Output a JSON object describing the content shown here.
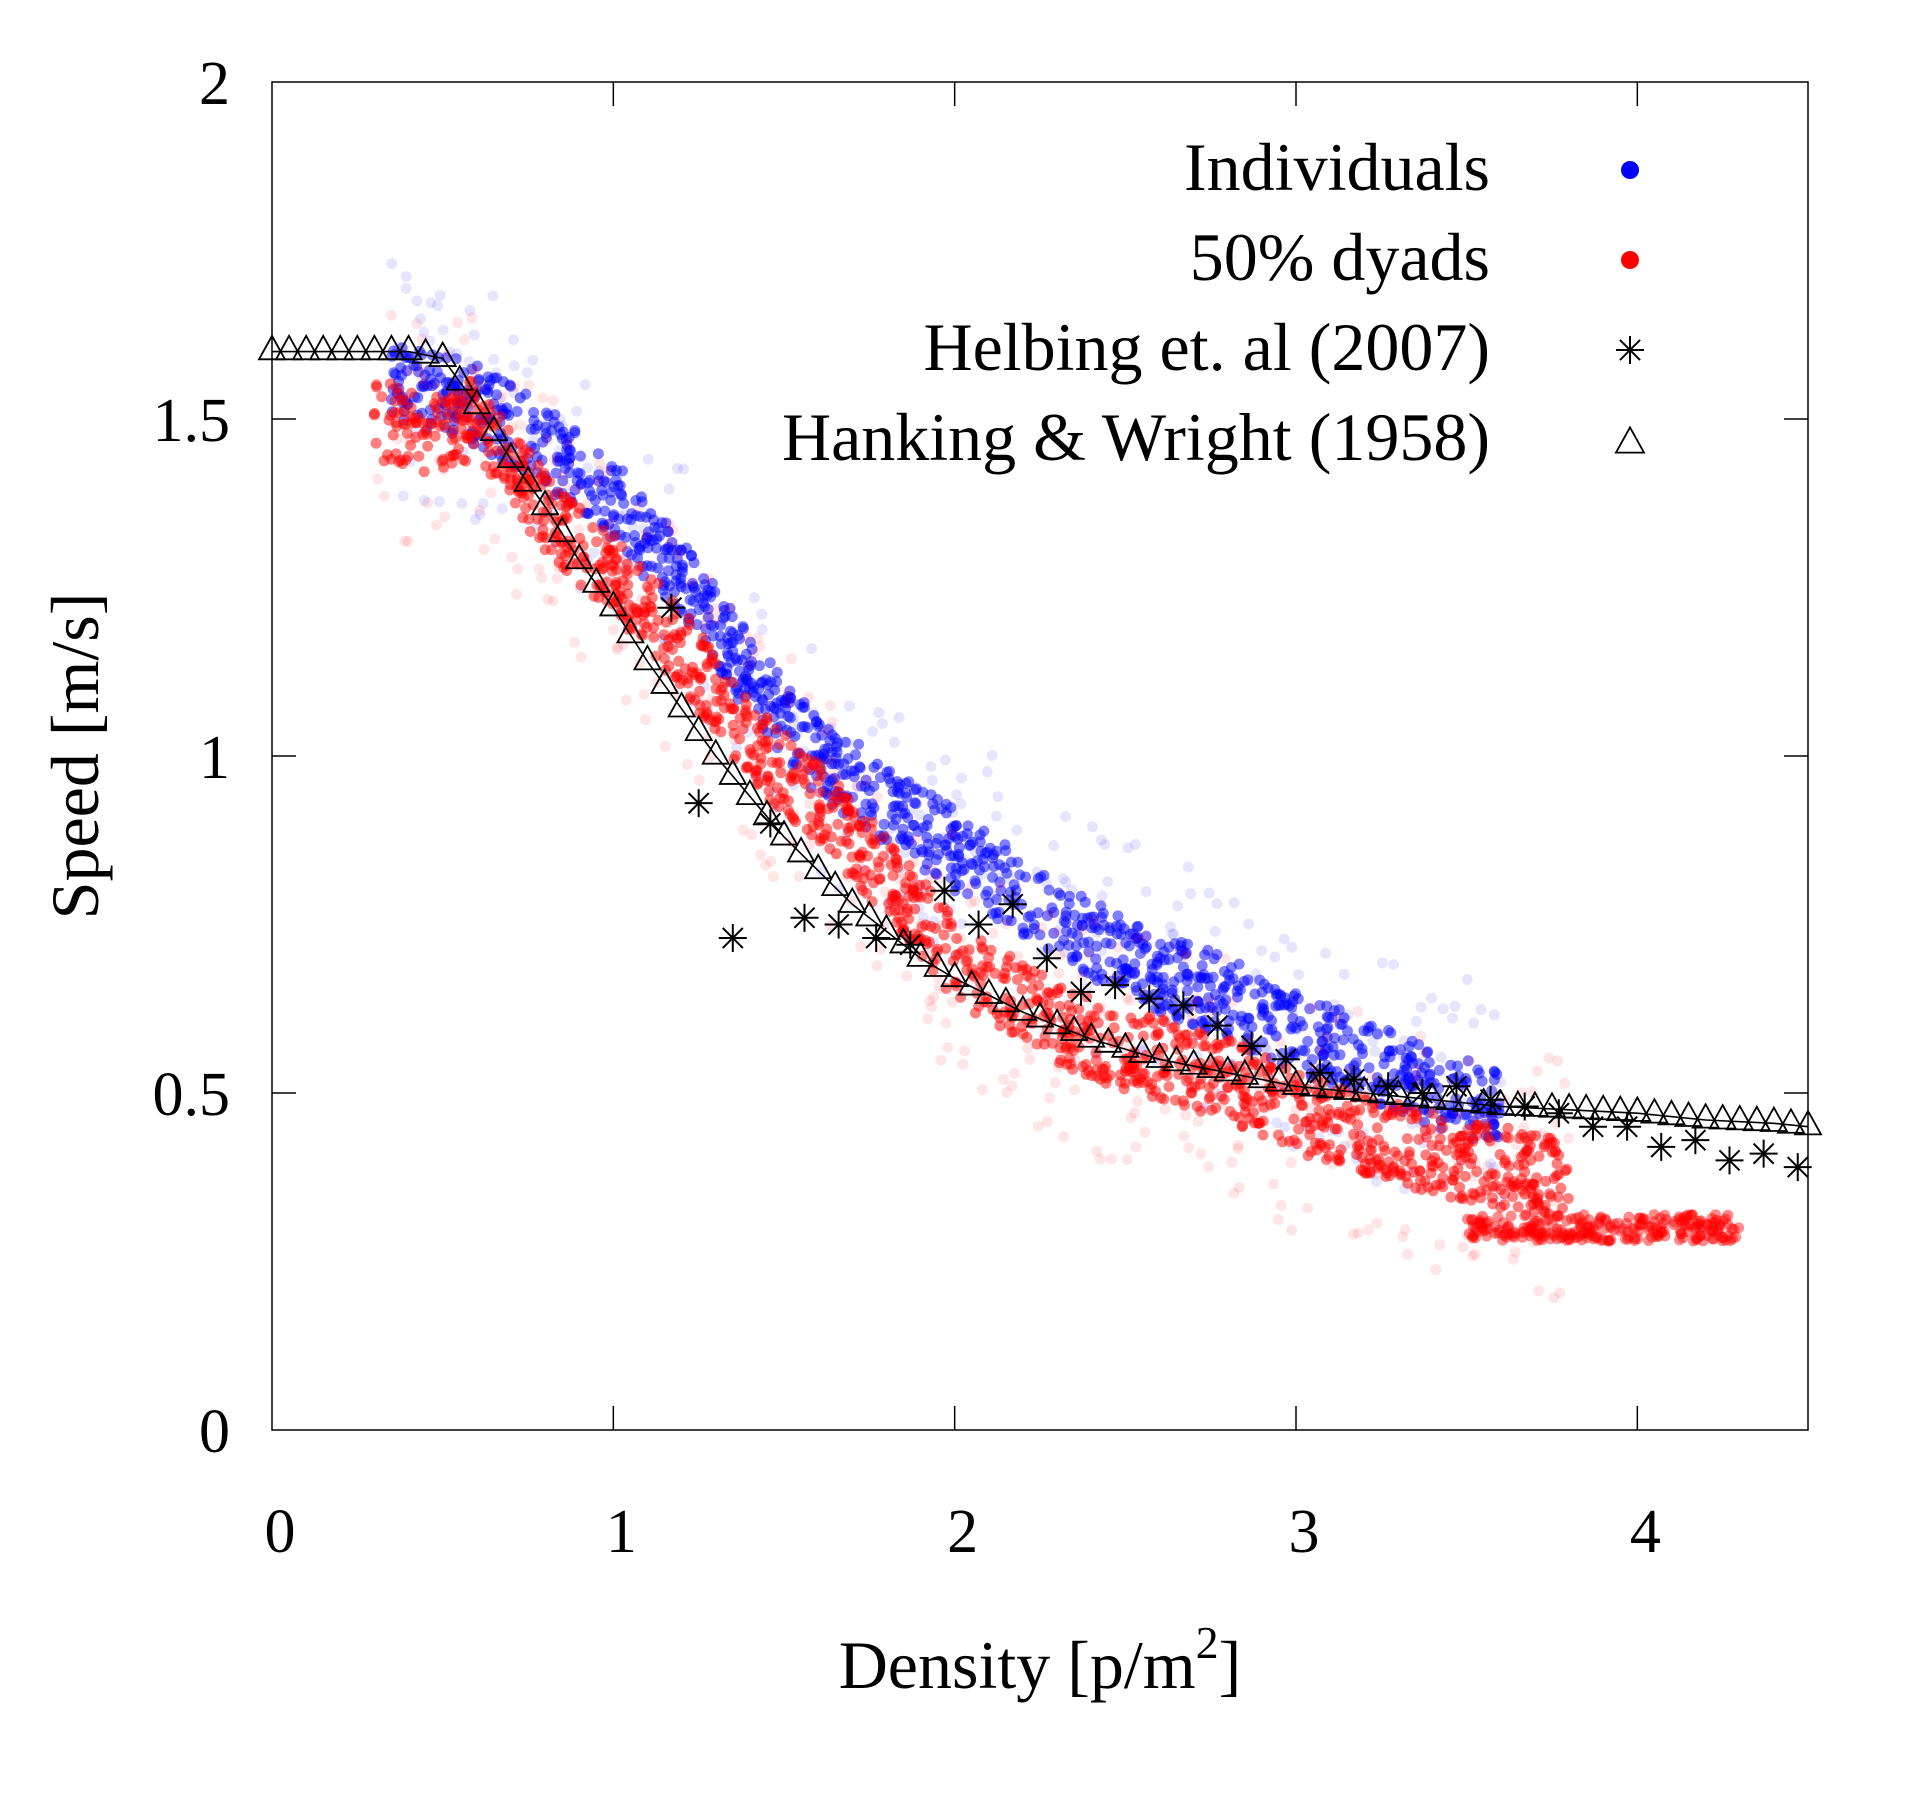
{
  "chart_data": {
    "type": "scatter",
    "xlabel": "Density [p/m",
    "xlabel_sup": "2",
    "xlabel_end": "]",
    "ylabel": "Speed [m/s]",
    "xlim": [
      0,
      4.5
    ],
    "ylim": [
      0,
      2
    ],
    "x_ticks": [
      0,
      1,
      2,
      3,
      4
    ],
    "y_ticks": [
      0,
      0.5,
      1,
      1.5,
      2
    ],
    "x_tick_labels": [
      "0",
      "1",
      "2",
      "3",
      "4"
    ],
    "y_tick_labels": [
      "0",
      "0.5",
      "1",
      "1.5",
      "2"
    ],
    "grid": false,
    "legend_position": "top-right",
    "colors": {
      "individuals": "#0000ff",
      "dyads": "#ff0000",
      "reference": "#000000"
    },
    "series": [
      {
        "name": "Individuals",
        "marker": "dot",
        "centerline": [
          [
            0.35,
            1.56
          ],
          [
            0.6,
            1.52
          ],
          [
            0.8,
            1.46
          ],
          [
            1.0,
            1.38
          ],
          [
            1.2,
            1.26
          ],
          [
            1.4,
            1.12
          ],
          [
            1.6,
            1.0
          ],
          [
            1.8,
            0.93
          ],
          [
            2.0,
            0.86
          ],
          [
            2.2,
            0.79
          ],
          [
            2.4,
            0.73
          ],
          [
            2.6,
            0.68
          ],
          [
            2.8,
            0.64
          ],
          [
            3.0,
            0.59
          ],
          [
            3.2,
            0.55
          ],
          [
            3.4,
            0.51
          ],
          [
            3.6,
            0.47
          ]
        ],
        "band_halfwidth": 0.06
      },
      {
        "name": "50% dyads",
        "marker": "dot",
        "centerline": [
          [
            0.3,
            1.5
          ],
          [
            0.45,
            1.48
          ],
          [
            0.6,
            1.5
          ],
          [
            0.8,
            1.36
          ],
          [
            1.0,
            1.27
          ],
          [
            1.2,
            1.16
          ],
          [
            1.4,
            1.02
          ],
          [
            1.6,
            0.93
          ],
          [
            1.8,
            0.82
          ],
          [
            2.0,
            0.7
          ],
          [
            2.2,
            0.63
          ],
          [
            2.4,
            0.58
          ],
          [
            2.6,
            0.55
          ],
          [
            2.8,
            0.52
          ],
          [
            3.0,
            0.47
          ],
          [
            3.2,
            0.44
          ],
          [
            3.4,
            0.41
          ],
          [
            3.6,
            0.39
          ],
          [
            3.8,
            0.37
          ]
        ],
        "band_halfwidth": 0.06,
        "low_cluster": {
          "x_range": [
            3.5,
            4.3
          ],
          "y": 0.3
        }
      },
      {
        "name": "Helbing et. al (2007)",
        "marker": "asterisk",
        "points": [
          [
            1.17,
            1.22
          ],
          [
            1.25,
            0.93
          ],
          [
            1.35,
            0.73
          ],
          [
            1.46,
            0.9
          ],
          [
            1.56,
            0.76
          ],
          [
            1.66,
            0.75
          ],
          [
            1.77,
            0.73
          ],
          [
            1.87,
            0.72
          ],
          [
            1.97,
            0.8
          ],
          [
            2.07,
            0.75
          ],
          [
            2.17,
            0.78
          ],
          [
            2.27,
            0.7
          ],
          [
            2.37,
            0.65
          ],
          [
            2.47,
            0.66
          ],
          [
            2.57,
            0.64
          ],
          [
            2.67,
            0.63
          ],
          [
            2.77,
            0.6
          ],
          [
            2.87,
            0.57
          ],
          [
            2.97,
            0.55
          ],
          [
            3.07,
            0.53
          ],
          [
            3.17,
            0.52
          ],
          [
            3.27,
            0.51
          ],
          [
            3.37,
            0.5
          ],
          [
            3.47,
            0.51
          ],
          [
            3.57,
            0.49
          ],
          [
            3.67,
            0.48
          ],
          [
            3.77,
            0.47
          ],
          [
            3.87,
            0.45
          ],
          [
            3.97,
            0.45
          ],
          [
            4.07,
            0.42
          ],
          [
            4.17,
            0.43
          ],
          [
            4.27,
            0.4
          ],
          [
            4.37,
            0.41
          ],
          [
            4.47,
            0.39
          ]
        ]
      },
      {
        "name": "Hanking & Wright (1958)",
        "marker": "triangle",
        "curve": [
          [
            0,
            1.6
          ],
          [
            0.1,
            1.6
          ],
          [
            0.2,
            1.6
          ],
          [
            0.3,
            1.6
          ],
          [
            0.4,
            1.6
          ],
          [
            0.5,
            1.59
          ],
          [
            0.6,
            1.52
          ],
          [
            0.7,
            1.44
          ],
          [
            0.8,
            1.37
          ],
          [
            0.9,
            1.29
          ],
          [
            1.0,
            1.22
          ],
          [
            1.1,
            1.14
          ],
          [
            1.2,
            1.07
          ],
          [
            1.3,
            1.0
          ],
          [
            1.4,
            0.94
          ],
          [
            1.5,
            0.88
          ],
          [
            1.6,
            0.83
          ],
          [
            1.7,
            0.78
          ],
          [
            1.8,
            0.74
          ],
          [
            1.9,
            0.7
          ],
          [
            2.0,
            0.67
          ],
          [
            2.2,
            0.62
          ],
          [
            2.4,
            0.58
          ],
          [
            2.6,
            0.55
          ],
          [
            2.8,
            0.53
          ],
          [
            3.0,
            0.51
          ],
          [
            3.2,
            0.5
          ],
          [
            3.4,
            0.49
          ],
          [
            3.6,
            0.48
          ],
          [
            3.8,
            0.475
          ],
          [
            4.0,
            0.47
          ],
          [
            4.2,
            0.46
          ],
          [
            4.4,
            0.455
          ],
          [
            4.5,
            0.45
          ]
        ]
      }
    ]
  }
}
